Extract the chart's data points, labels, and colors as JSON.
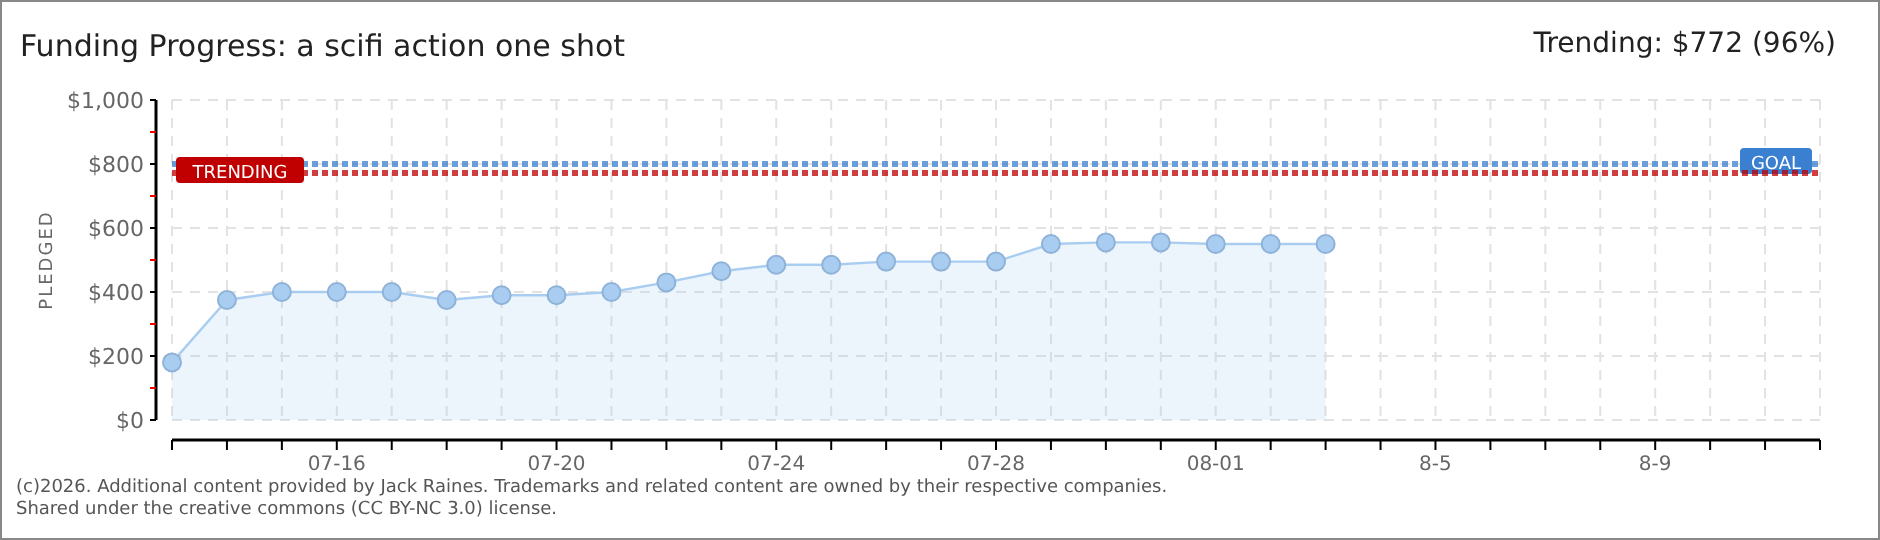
{
  "chart_data": {
    "type": "area",
    "title": "Funding Progress: a scifi action one shot",
    "subtitle": "Trending: $772 (96%)",
    "ylabel": "PLEDGED",
    "categories": [
      null,
      null,
      null,
      "07-16",
      null,
      null,
      null,
      "07-20",
      null,
      null,
      null,
      "07-24",
      null,
      null,
      null,
      "07-28",
      null,
      null,
      null,
      "08-01",
      null,
      null,
      null,
      "8-5",
      null,
      null,
      null,
      "8-9",
      null,
      null,
      null
    ],
    "series": [
      {
        "color": "#a9cdf0",
        "values": [
          180,
          375,
          400,
          400,
          400,
          375,
          390,
          390,
          400,
          430,
          465,
          485,
          485,
          495,
          495,
          495,
          550,
          555,
          555,
          550,
          550,
          550,
          null,
          null,
          null,
          null,
          null,
          null,
          null,
          null,
          null
        ]
      }
    ],
    "ylim": [
      0,
      1000
    ],
    "yticks": [
      {
        "value": 0,
        "label": "$0"
      },
      {
        "value": 100,
        "label": null
      },
      {
        "value": 200,
        "label": "$200"
      },
      {
        "value": 300,
        "label": null
      },
      {
        "value": 400,
        "label": "$400"
      },
      {
        "value": 500,
        "label": null
      },
      {
        "value": 600,
        "label": "$600"
      },
      {
        "value": 700,
        "label": null
      },
      {
        "value": 800,
        "label": "$800"
      },
      {
        "value": 900,
        "label": null
      },
      {
        "value": 1000,
        "label": "$1,000"
      }
    ],
    "grid": true,
    "marker": "circle",
    "ref_lines": [
      {
        "axis": "y",
        "value": 800,
        "label": "GOAL",
        "color": "#3a7fd0",
        "line_style": "dotted"
      },
      {
        "axis": "y",
        "value": 772,
        "label": "TRENDING",
        "color": "#c00000",
        "line_style": "dotted"
      }
    ],
    "annotations": [
      "(c)2026. Additional content provided by Jack Raines. Trademarks and related content are owned by their respective companies.",
      "Shared under the creative commons (CC BY-NC 3.0) license."
    ]
  }
}
